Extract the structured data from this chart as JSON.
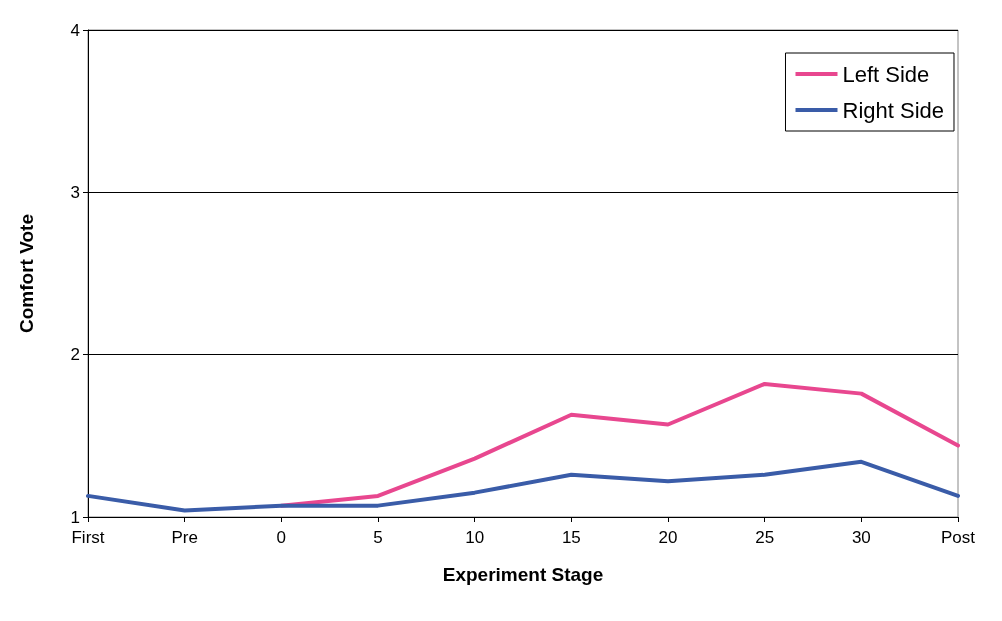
{
  "chart_data": {
    "type": "line",
    "xlabel": "Experiment Stage",
    "ylabel": "Comfort Vote",
    "categories": [
      "First",
      "Pre",
      "0",
      "5",
      "10",
      "15",
      "20",
      "25",
      "30",
      "Post"
    ],
    "series": [
      {
        "name": "Left Side",
        "color": "#e8478f",
        "values": [
          null,
          null,
          1.07,
          1.13,
          1.36,
          1.63,
          1.57,
          1.82,
          1.76,
          1.44
        ]
      },
      {
        "name": "Right Side",
        "color": "#3a5ca8",
        "values": [
          1.13,
          1.04,
          1.07,
          1.07,
          1.15,
          1.26,
          1.22,
          1.26,
          1.34,
          1.13
        ]
      }
    ],
    "ylim": [
      1,
      4
    ],
    "yticks": [
      1,
      2,
      3,
      4
    ],
    "grid": "y",
    "legend": "top right",
    "marker": "none",
    "line_style": "solid"
  }
}
